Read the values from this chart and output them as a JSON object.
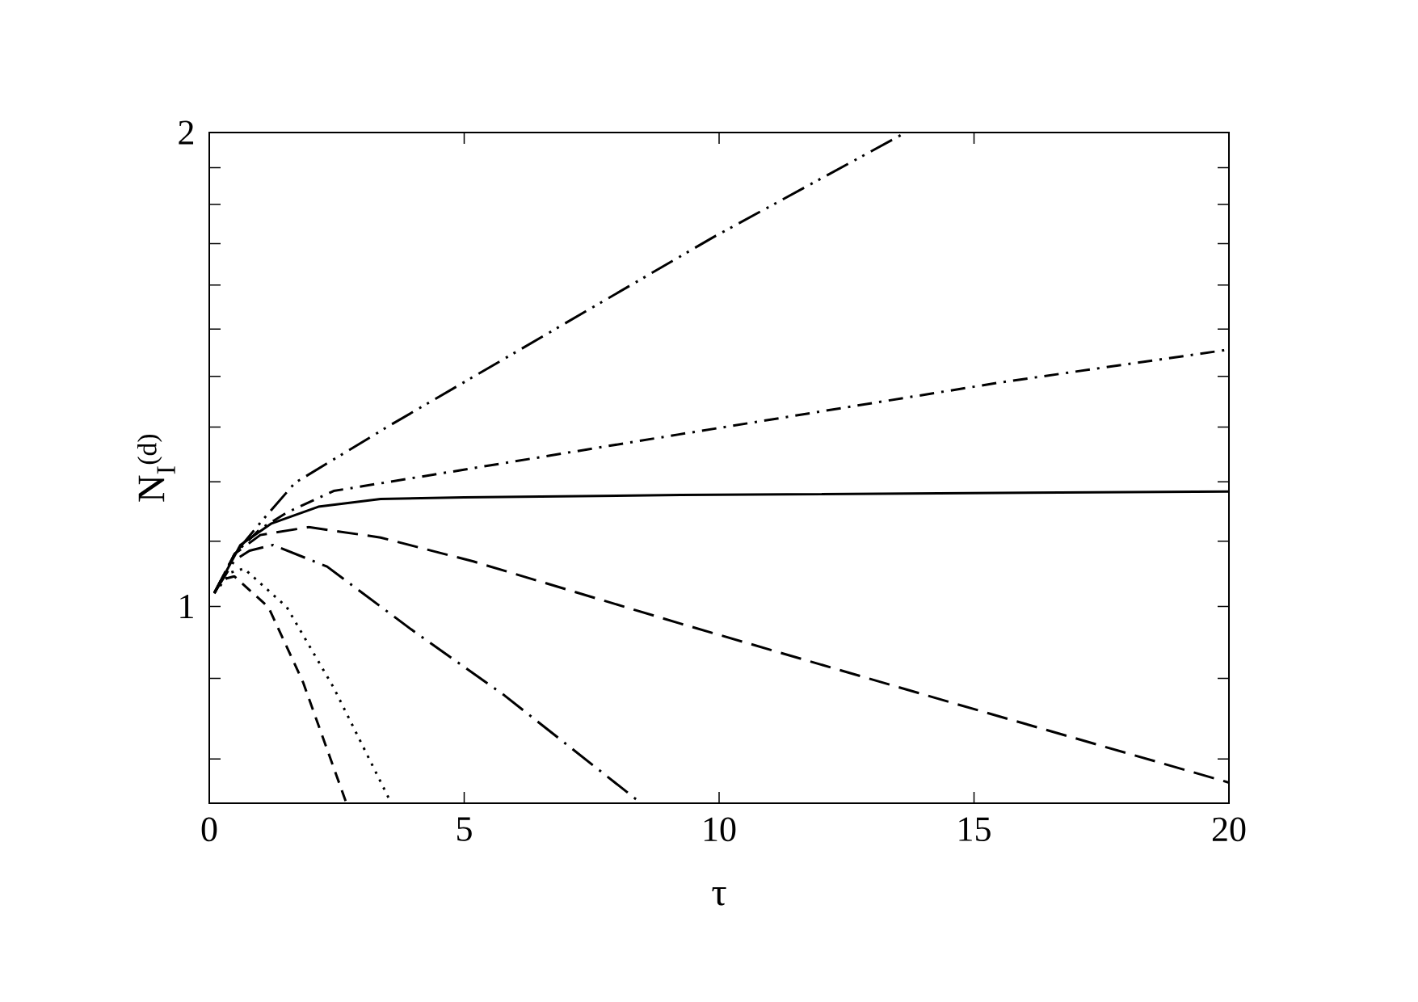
{
  "chart_data": {
    "type": "line",
    "xlabel": "τ",
    "ylabel": "N$_{I}$$^{(d)}$",
    "log": "y",
    "marker": "none",
    "xlim": [
      0,
      20
    ],
    "xticks": [
      0,
      5,
      10,
      15,
      20
    ],
    "ylim": [
      0.75,
      2
    ],
    "yticks": [
      {
        "value": 0.8,
        "label": null
      },
      {
        "value": 0.9,
        "label": null
      },
      1,
      {
        "value": 1.1,
        "label": null
      },
      {
        "value": 1.2,
        "label": null
      },
      {
        "value": 1.3,
        "label": null
      },
      {
        "value": 1.4,
        "label": null
      },
      {
        "value": 1.5,
        "label": null
      },
      {
        "value": 1.6,
        "label": null
      },
      {
        "value": 1.7,
        "label": null
      },
      {
        "value": 1.8,
        "label": null
      },
      {
        "value": 1.9,
        "label": null
      },
      2
    ],
    "series": [
      {
        "color": "#000000",
        "line_style": "dashdotdot",
        "x": [
          0.1,
          0.5,
          1,
          1.68,
          3.54,
          6.83,
          9.87,
          13.66
        ],
        "values": [
          1.02,
          1.08,
          1.13,
          1.198,
          1.303,
          1.503,
          1.715,
          2.0
        ]
      },
      {
        "color": "#000000",
        "line_style": "dashdot",
        "x": [
          0.1,
          0.5,
          1,
          1.52,
          2.44,
          4.97,
          9.21,
          15.54,
          20
        ],
        "values": [
          1.02,
          1.08,
          1.12,
          1.147,
          1.184,
          1.221,
          1.286,
          1.388,
          1.456
        ]
      },
      {
        "color": "#000000",
        "line_style": "solid",
        "x": [
          0.1,
          0.61,
          1.22,
          2.14,
          3.36,
          5,
          9.25,
          20
        ],
        "values": [
          1.019,
          1.094,
          1.129,
          1.157,
          1.17,
          1.173,
          1.177,
          1.183
        ]
      },
      {
        "color": "#000000",
        "line_style": "longdashed",
        "x": [
          0.1,
          0.5,
          1,
          1.95,
          3.36,
          5.18,
          9.25,
          14.6,
          20
        ],
        "values": [
          1.02,
          1.08,
          1.11,
          1.123,
          1.106,
          1.068,
          0.975,
          0.868,
          0.773
        ]
      },
      {
        "color": "#000000",
        "line_style": "longdashdot",
        "x": [
          0.1,
          0.5,
          0.79,
          1.25,
          2.31,
          3.96,
          5.79,
          8.47
        ],
        "values": [
          1.02,
          1.07,
          1.085,
          1.094,
          1.06,
          0.967,
          0.878,
          0.75
        ]
      },
      {
        "color": "#000000",
        "line_style": "dotted",
        "x": [
          0.1,
          0.43,
          0.68,
          1.52,
          2.44,
          3.57
        ],
        "values": [
          1.02,
          1.051,
          1.057,
          0.999,
          0.888,
          0.75
        ]
      },
      {
        "color": "#000000",
        "line_style": "dashed",
        "x": [
          0.1,
          0.25,
          0.49,
          1.16,
          1.84,
          2.69
        ],
        "values": [
          1.02,
          1.04,
          1.045,
          0.999,
          0.895,
          0.75
        ]
      }
    ]
  }
}
